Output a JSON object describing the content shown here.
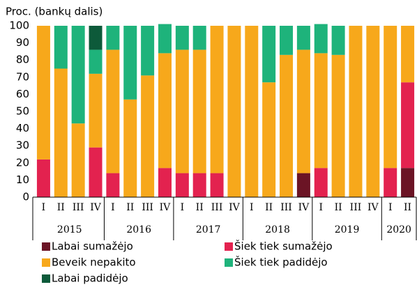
{
  "chart_data": {
    "type": "stacked_bar",
    "title": "Proc. (bankų dalis)",
    "categories": [
      "I",
      "II",
      "III",
      "IV",
      "I",
      "II",
      "III",
      "IV",
      "I",
      "II",
      "III",
      "IV",
      "I",
      "II",
      "III",
      "IV",
      "I",
      "II",
      "III",
      "IV",
      "I",
      "II"
    ],
    "years": [
      {
        "label": "2015",
        "count": 4
      },
      {
        "label": "2016",
        "count": 4
      },
      {
        "label": "2017",
        "count": 4
      },
      {
        "label": "2018",
        "count": 4
      },
      {
        "label": "2019",
        "count": 4
      },
      {
        "label": "2020",
        "count": 2
      }
    ],
    "series": [
      {
        "name": "Labai sumažėjo",
        "color": "#6b1425",
        "values": [
          0,
          0,
          0,
          0,
          0,
          0,
          0,
          0,
          0,
          0,
          0,
          0,
          0,
          0,
          0,
          14,
          0,
          0,
          0,
          0,
          0,
          17
        ]
      },
      {
        "name": "Šiek tiek sumažėjo",
        "color": "#e3224f",
        "values": [
          22,
          0,
          0,
          29,
          14,
          0,
          0,
          17,
          14,
          14,
          14,
          0,
          0,
          0,
          0,
          0,
          17,
          0,
          0,
          0,
          17,
          50
        ]
      },
      {
        "name": "Beveik nepakito",
        "color": "#f7a81b",
        "values": [
          78,
          75,
          43,
          43,
          72,
          57,
          71,
          67,
          72,
          72,
          86,
          100,
          100,
          67,
          83,
          72,
          67,
          83,
          100,
          100,
          83,
          33
        ]
      },
      {
        "name": "Šiek tiek padidėjo",
        "color": "#1eb37b",
        "values": [
          0,
          25,
          57,
          14,
          14,
          43,
          29,
          17,
          14,
          14,
          0,
          0,
          0,
          33,
          17,
          14,
          17,
          17,
          0,
          0,
          0,
          0
        ]
      },
      {
        "name": "Labai padidėjo",
        "color": "#0d5a3a",
        "values": [
          0,
          0,
          0,
          14,
          0,
          0,
          0,
          0,
          0,
          0,
          0,
          0,
          0,
          0,
          0,
          0,
          0,
          0,
          0,
          0,
          0,
          0
        ]
      }
    ],
    "ylim": [
      0,
      100
    ],
    "yticks": [
      0,
      10,
      20,
      30,
      40,
      50,
      60,
      70,
      80,
      90,
      100
    ]
  }
}
